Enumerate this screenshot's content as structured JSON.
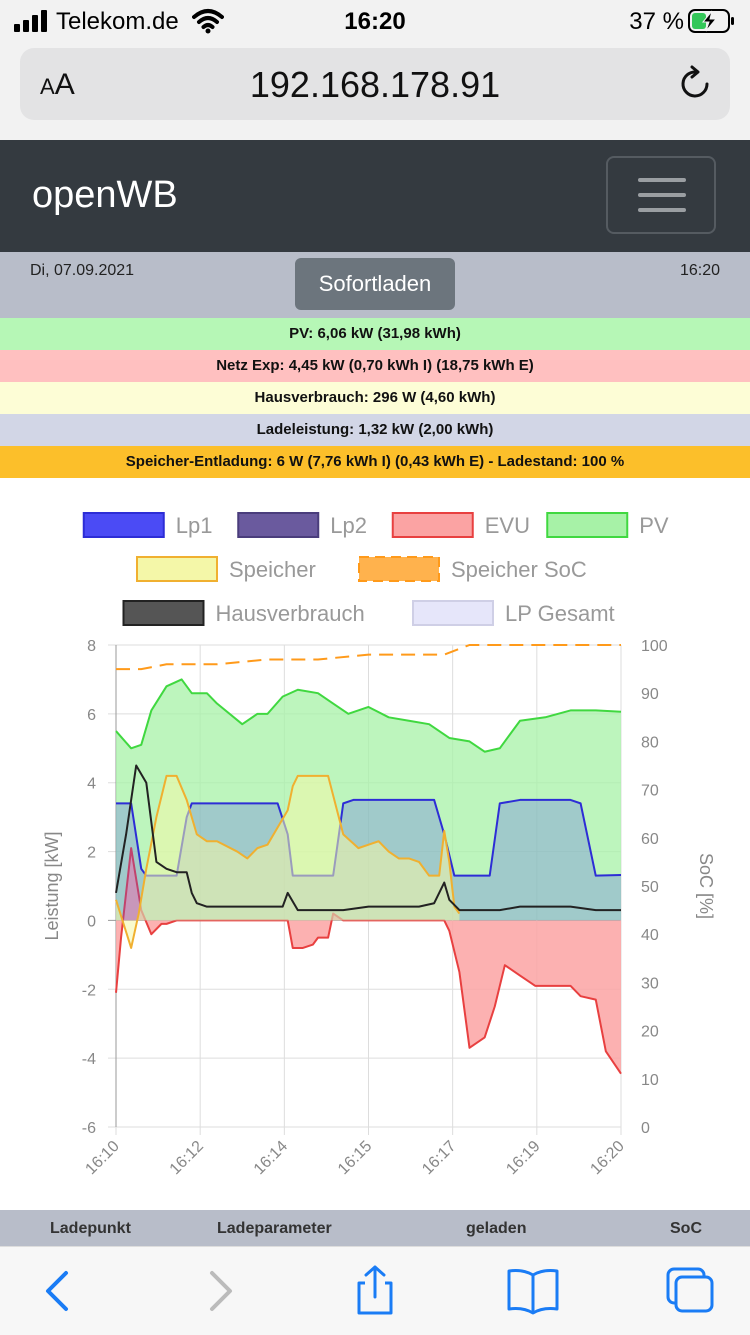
{
  "status_bar": {
    "carrier": "Telekom.de",
    "time": "16:20",
    "battery": "37 %"
  },
  "browser": {
    "text_size_label_small": "A",
    "text_size_label_large": "A",
    "url": "192.168.178.91"
  },
  "navbar": {
    "brand": "openWB"
  },
  "info": {
    "date": "Di, 07.09.2021",
    "time": "16:20",
    "mode_button": "Sofortladen"
  },
  "summary_rows": [
    {
      "text": "PV: 6,06 kW (31,98 kWh)",
      "color": "#b6f7b6"
    },
    {
      "text": "Netz Exp: 4,45 kW (0,70 kWh I) (18,75 kWh E)",
      "color": "#ffc0c0"
    },
    {
      "text": "Hausverbrauch: 296 W (4,60 kWh)",
      "color": "#fdfdd6"
    },
    {
      "text": "Ladeleistung: 1,32 kW (2,00 kWh)",
      "color": "#d2d6e6"
    },
    {
      "text": "Speicher-Entladung: 6 W (7,76 kWh I) (0,43 kWh E) - Ladestand: 100 %",
      "color": "#fcbf2a"
    }
  ],
  "table_header": {
    "col1": "Ladepunkt",
    "col2": "Ladeparameter",
    "col3": "geladen",
    "col4": "SoC"
  },
  "chart_data": {
    "type": "area",
    "legend": [
      {
        "name": "Lp1",
        "fill": "#4b4bf5",
        "stroke": "#2d2dd6"
      },
      {
        "name": "Lp2",
        "fill": "#6a5a9e",
        "stroke": "#4a3d7c"
      },
      {
        "name": "EVU",
        "fill": "#fba3a3",
        "stroke": "#e84040"
      },
      {
        "name": "PV",
        "fill": "#a7f2a7",
        "stroke": "#40d840"
      },
      {
        "name": "Speicher",
        "fill": "#f4f7a8",
        "stroke": "#f0b030"
      },
      {
        "name": "Speicher SoC",
        "fill": "#ffb24d",
        "stroke": "#ff9a1a"
      },
      {
        "name": "Hausverbrauch",
        "fill": "#555555",
        "stroke": "#222222"
      },
      {
        "name": "LP Gesamt",
        "fill": "#e6e6fa",
        "stroke": "#cfcfe6"
      }
    ],
    "legend_position": "top",
    "ylabel_left": "Leistung [kW]",
    "ylabel_right": "SoC [%]",
    "y_left_range": [
      -6,
      8
    ],
    "y_left_ticks": [
      -6,
      -4,
      -2,
      0,
      2,
      4,
      6,
      8
    ],
    "y_right_range": [
      0,
      100
    ],
    "y_right_ticks": [
      0,
      10,
      20,
      30,
      40,
      50,
      60,
      70,
      80,
      90,
      100
    ],
    "x_ticks": [
      "16:10",
      "16:12",
      "16:14",
      "16:15",
      "16:17",
      "16:19",
      "16:20"
    ],
    "x_range_minutes": [
      0,
      10
    ],
    "grid": true,
    "series": [
      {
        "name": "PV",
        "x": [
          0,
          0.3,
          0.5,
          0.7,
          1.0,
          1.3,
          1.5,
          1.8,
          2.0,
          2.5,
          2.8,
          3.0,
          3.3,
          3.6,
          4.0,
          4.3,
          4.6,
          5.0,
          5.4,
          5.8,
          6.2,
          6.6,
          7.0,
          7.3,
          7.6,
          8.0,
          8.5,
          9.0,
          9.5,
          10.0
        ],
        "values": [
          5.5,
          5.0,
          5.1,
          6.1,
          6.8,
          7.0,
          6.6,
          6.6,
          6.3,
          5.7,
          6.0,
          6.0,
          6.5,
          6.7,
          6.6,
          6.3,
          6.0,
          6.2,
          5.9,
          5.8,
          5.7,
          5.3,
          5.2,
          4.9,
          5.0,
          5.8,
          5.9,
          6.1,
          6.1,
          6.06
        ]
      },
      {
        "name": "Lp1",
        "x": [
          0,
          0.3,
          0.5,
          0.6,
          0.8,
          1.0,
          1.2,
          1.4,
          1.5,
          1.7,
          2.0,
          2.5,
          3.0,
          3.2,
          3.4,
          3.5,
          3.7,
          4.0,
          4.3,
          4.5,
          4.7,
          5.0,
          5.5,
          6.0,
          6.3,
          6.5,
          6.7,
          7.0,
          7.4,
          7.6,
          8.0,
          8.5,
          9.0,
          9.2,
          9.5,
          10.0
        ],
        "values": [
          3.4,
          3.4,
          1.5,
          1.3,
          1.3,
          1.3,
          1.3,
          3.0,
          3.4,
          3.4,
          3.4,
          3.4,
          3.4,
          3.4,
          2.5,
          1.3,
          1.3,
          1.3,
          1.3,
          3.4,
          3.5,
          3.5,
          3.5,
          3.5,
          3.5,
          2.5,
          1.3,
          1.3,
          1.3,
          3.4,
          3.5,
          3.5,
          3.5,
          3.4,
          1.3,
          1.32
        ]
      },
      {
        "name": "Speicher",
        "x": [
          0,
          0.15,
          0.3,
          0.45,
          0.6,
          0.8,
          1.0,
          1.2,
          1.4,
          1.6,
          1.8,
          2.0,
          2.4,
          2.6,
          2.8,
          3.0,
          3.2,
          3.4,
          3.5,
          3.6,
          3.8,
          4.0,
          4.2,
          4.5,
          4.8,
          5.0,
          5.2,
          5.4,
          5.6,
          5.8,
          6.0,
          6.2,
          6.4,
          6.5,
          6.6,
          6.7,
          6.8
        ],
        "values": [
          0.6,
          -0.1,
          -0.8,
          0.2,
          1.5,
          3.0,
          4.2,
          4.2,
          3.5,
          2.5,
          2.3,
          2.3,
          2.0,
          1.8,
          2.1,
          2.2,
          2.7,
          3.2,
          3.9,
          4.2,
          4.2,
          4.2,
          4.2,
          2.5,
          2.1,
          2.2,
          2.3,
          2.0,
          1.8,
          1.8,
          1.7,
          1.3,
          1.3,
          2.6,
          1.7,
          0.4,
          0.2
        ]
      },
      {
        "name": "Hausverbrauch",
        "x": [
          0,
          0.2,
          0.4,
          0.6,
          0.8,
          1.0,
          1.2,
          1.4,
          1.5,
          1.6,
          1.8,
          2.0,
          2.5,
          3.0,
          3.3,
          3.4,
          3.6,
          4.0,
          4.2,
          4.5,
          5.0,
          5.5,
          6.0,
          6.3,
          6.5,
          6.6,
          6.8,
          7.2,
          7.6,
          8.0,
          8.5,
          9.0,
          9.5,
          10.0
        ],
        "values": [
          0.8,
          2.5,
          4.5,
          4.0,
          1.7,
          1.5,
          1.4,
          1.4,
          0.8,
          0.5,
          0.4,
          0.4,
          0.4,
          0.4,
          0.4,
          0.8,
          0.3,
          0.3,
          0.3,
          0.3,
          0.4,
          0.4,
          0.4,
          0.5,
          1.1,
          0.6,
          0.3,
          0.3,
          0.3,
          0.4,
          0.4,
          0.4,
          0.3,
          0.3
        ]
      },
      {
        "name": "EVU",
        "x": [
          0,
          0.1,
          0.3,
          0.5,
          0.7,
          0.9,
          1.0,
          1.2,
          1.5,
          2.0,
          2.5,
          3.0,
          3.4,
          3.5,
          3.7,
          3.9,
          4.0,
          4.2,
          4.3,
          4.5,
          5.0,
          5.5,
          6.0,
          6.3,
          6.5,
          6.6,
          6.8,
          7.0,
          7.3,
          7.5,
          7.7,
          8.0,
          8.3,
          8.5,
          9.0,
          9.2,
          9.5,
          9.7,
          10.0
        ],
        "values": [
          -2.1,
          -0.5,
          2.1,
          0.3,
          -0.4,
          -0.1,
          -0.1,
          0.0,
          0.0,
          0.0,
          0.0,
          0.0,
          0.0,
          -0.8,
          -0.8,
          -0.7,
          -0.5,
          -0.5,
          0.2,
          0.0,
          0.0,
          0.0,
          0.0,
          0.0,
          0.0,
          -0.3,
          -1.5,
          -3.7,
          -3.4,
          -2.5,
          -1.3,
          -1.6,
          -1.9,
          -1.9,
          -1.9,
          -2.2,
          -2.3,
          -3.8,
          -4.45
        ]
      },
      {
        "name": "Speicher SoC",
        "x": [
          0,
          0.5,
          1.0,
          2.0,
          3.0,
          4.0,
          5.0,
          6.0,
          6.5,
          7.0,
          10.0
        ],
        "values": [
          95,
          95,
          96,
          96,
          97,
          97,
          98,
          98,
          98,
          100,
          100
        ]
      }
    ]
  }
}
